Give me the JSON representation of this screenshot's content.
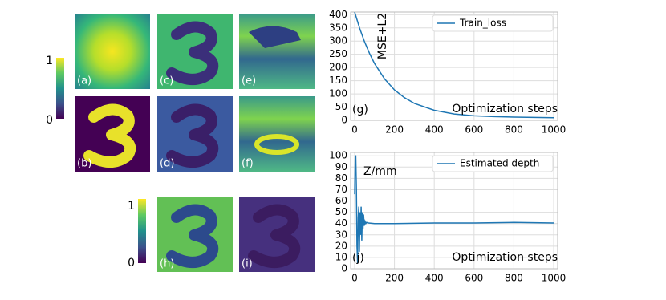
{
  "panels": [
    {
      "label": "(a)"
    },
    {
      "label": "(b)"
    },
    {
      "label": "(c)"
    },
    {
      "label": "(d)"
    },
    {
      "label": "(e)"
    },
    {
      "label": "(f)"
    },
    {
      "label": "(h)"
    },
    {
      "label": "(i)"
    }
  ],
  "colorbars": [
    {
      "ticks": [
        1,
        0
      ]
    },
    {
      "ticks": [
        1,
        0
      ]
    }
  ],
  "chart_data": [
    {
      "type": "line",
      "panel_label": "(g)",
      "ylabel": "MSE+L2",
      "xlabel": "Optimization steps",
      "x": [
        0,
        25,
        50,
        75,
        100,
        150,
        200,
        250,
        300,
        400,
        500,
        600,
        700,
        800,
        900,
        1000
      ],
      "series": [
        {
          "name": "Train_loss",
          "color": "#1f77b4",
          "values": [
            410,
            349,
            297,
            253,
            215,
            157,
            115,
            86,
            64,
            38,
            24,
            17,
            14,
            12,
            11,
            10
          ]
        }
      ],
      "xlim": [
        -20,
        1020
      ],
      "ylim": [
        0,
        410
      ],
      "xticks": [
        0,
        200,
        400,
        600,
        800,
        1000
      ],
      "yticks": [
        0,
        50,
        100,
        150,
        200,
        250,
        300,
        350,
        400
      ],
      "grid": true,
      "legend": "upper right"
    },
    {
      "type": "line",
      "panel_label": "(j)",
      "ylabel": "Z/mm",
      "xlabel": "Optimization steps",
      "x": [
        0,
        3,
        6,
        9,
        12,
        15,
        18,
        21,
        24,
        27,
        30,
        33,
        36,
        39,
        42,
        45,
        48,
        52,
        56,
        60,
        70,
        100,
        200,
        400,
        600,
        800,
        1000
      ],
      "series": [
        {
          "name": "Estimated depth",
          "color": "#1f77b4",
          "values": [
            66,
            100,
            100,
            70,
            20,
            5,
            45,
            55,
            15,
            50,
            30,
            55,
            25,
            50,
            35,
            48,
            38,
            42,
            40,
            41,
            40.5,
            40,
            40,
            40.5,
            40.5,
            41,
            40.5
          ]
        }
      ],
      "xlim": [
        -20,
        1020
      ],
      "ylim": [
        0,
        103
      ],
      "xticks": [
        0,
        200,
        400,
        600,
        800,
        1000
      ],
      "yticks": [
        0,
        10,
        20,
        30,
        40,
        50,
        60,
        70,
        80,
        90,
        100
      ],
      "grid": true,
      "legend": "upper right"
    }
  ]
}
